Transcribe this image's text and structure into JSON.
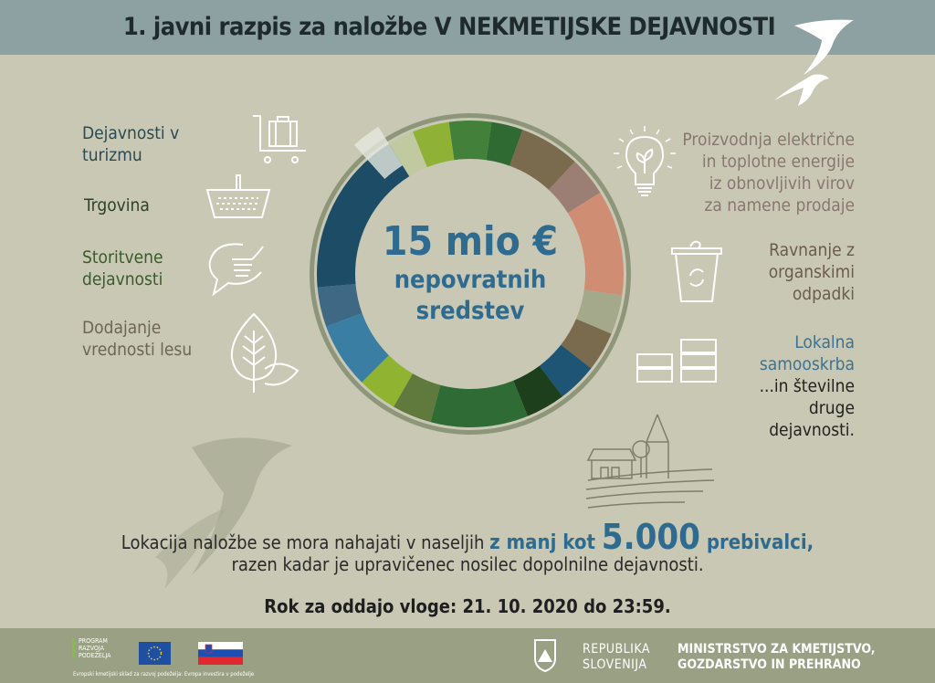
{
  "header": {
    "title": "1. javni razpis za naložbe V NEKMETIJSKE DEJAVNOSTI"
  },
  "left_items": [
    {
      "lines": [
        "Dejavnosti v",
        "turizmu"
      ],
      "color": "#2c4a52",
      "icon": "luggage-cart-icon"
    },
    {
      "lines": [
        "Trgovina"
      ],
      "color": "#2e3f2a",
      "icon": "shopping-basket-icon"
    },
    {
      "lines": [
        "Storitvene",
        "dejavnosti"
      ],
      "color": "#3b5a2c",
      "icon": "hand-speech-bubble-icon"
    },
    {
      "lines": [
        "Dodajanje",
        "vrednosti lesu"
      ],
      "color": "#6e6552",
      "icon": "leaf-icon"
    }
  ],
  "right_items": [
    {
      "lines": [
        "Proizvodnja električne",
        "in toplotne energije",
        "iz obnovljivih virov",
        "za namene prodaje"
      ],
      "color": "#8a7670",
      "icon": "lightbulb-plant-icon"
    },
    {
      "lines": [
        "Ravnanje z",
        "organskimi",
        "odpadki"
      ],
      "color": "#6b5c4a",
      "icon": "recycle-bin-icon"
    },
    {
      "lines": [
        "Lokalna",
        "samooskrba"
      ],
      "color": "#3f7190",
      "icon": "crates-icon"
    },
    {
      "lines": [
        "...in številne",
        "druge",
        "dejavnosti."
      ],
      "color": "#222222"
    }
  ],
  "center": {
    "amount": "15 mio €",
    "line1": "nepovratnih",
    "line2": "sredstev"
  },
  "ring_colors": [
    "#c0c9a0",
    "#8fb236",
    "#43803a",
    "#2e6a31",
    "#7a6a4e",
    "#9c7f74",
    "#cf8e73",
    "#a3a98a",
    "#7a6a4e",
    "#1e5474",
    "#1e3f1c",
    "#2e6b35",
    "#5f7a3c",
    "#90b432",
    "#3a7ea3",
    "#3e6884",
    "#1d4c66",
    "#a3a98a"
  ],
  "location": {
    "part1": "Lokacija naložbe se mora nahajati v naseljih ",
    "highlight1": "z manj kot ",
    "number": "5.000",
    "highlight2": " prebivalci,",
    "line2": "razen kadar je upravičenec nosilec dopolnilne dejavnosti."
  },
  "deadline": "Rok za oddajo vloge: 21. 10. 2020 do 23:59.",
  "footer": {
    "program": [
      "PROGRAM",
      "RAZVOJA",
      "PODEŽELJA"
    ],
    "eu_caption": "Evropski kmetijski sklad za razvoj podeželja: Evropa investira v podeželje",
    "republika": [
      "REPUBLIKA",
      "SLOVENIJA"
    ],
    "ministry": [
      "MINISTRSTVO ZA KMETIJSTVO,",
      "GOZDARSTVO IN PREHRANO"
    ]
  }
}
